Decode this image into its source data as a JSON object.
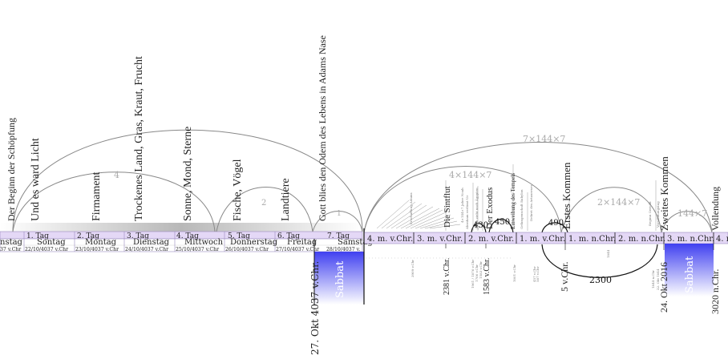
{
  "creation_labels": [
    "Der Beginn der Schöpfung",
    "Und es ward Licht",
    "Firmament",
    "Trockenes Land, Gras, Kraut, Frucht",
    "Sonne, Mond, Sterne",
    "Fische, Vögel",
    "Landtiere",
    "Gott blies den Odem des Lebens in Adams Nase"
  ],
  "arc_numbers": [
    "4",
    "2",
    "1"
  ],
  "day_tags": [
    "1. Tag",
    "2. Tag",
    "3. Tag",
    "4. Tag",
    "5. Tag",
    "6. Tag",
    "7. Tag"
  ],
  "weekdays": [
    "nstag",
    "Sontag",
    "Montag",
    "Dienstag",
    "Mittwoch",
    "Donnerstag",
    "Freitag",
    "Samstag"
  ],
  "week_dates": [
    "37 v.Chr",
    "22/10/4037 v.Chr",
    "23/10/4037 v.Chr",
    "24/10/4037 v.Chr",
    "25/10/4037 v.Chr",
    "26/10/4037 v.Chr",
    "27/10/4037 v.Chr",
    "28/10/4037 v."
  ],
  "sabbat_left": "Sabbat",
  "date_left": "27. Okt 4037 v.Chr.",
  "millennia": [
    "4. m. v.Chr.",
    "3. m. v.Chr.",
    "2. m. v.Chr.",
    "1. m. v.Chr.",
    "1. m. n.Chr.",
    "2. m. n.Chr.",
    "3. m. n.Chr.",
    "4. m"
  ],
  "events": [
    "Die Sintflut",
    "Der Exodus",
    "Erstes Kommen",
    "Zweites Kommen",
    "Vollendung"
  ],
  "small_events": [
    "Einweihung des Tempels"
  ],
  "arc_labels": [
    "7×144×7",
    "4×144×7",
    "2×144×7",
    "144×7",
    "430",
    "450",
    "490",
    "2300"
  ],
  "bottom_dates": [
    "2381 v.Chr.",
    "1583 v.Chr.",
    "5 v.Chr.",
    "24. Okt 2016",
    "3020 n.Chr."
  ],
  "sabbat_right": "Sabbat",
  "colors": {
    "band": "#e4d8f6",
    "band_border": "#9a8abf",
    "sabbat_gradient_top": "#4545f0",
    "sabbat_gradient_bottom": "#ffffff",
    "arc": "#888888",
    "dark": "#111111"
  }
}
